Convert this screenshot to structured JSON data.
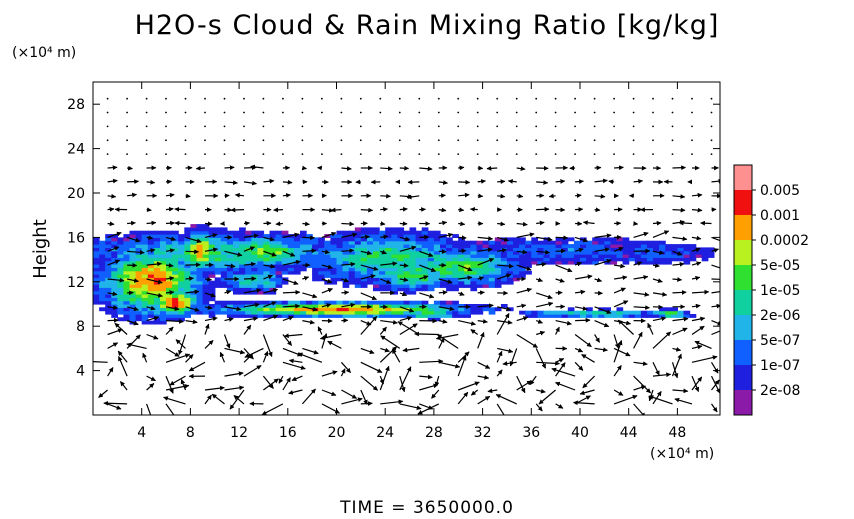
{
  "chart_data": {
    "type": "heatmap",
    "title": "H2O-s Cloud & Rain Mixing Ratio [kg/kg]",
    "ylabel": "Height",
    "y_unit": "(×10⁴ m)",
    "x_unit": "(×10⁴ m)",
    "xlim": [
      0,
      51.5
    ],
    "ylim": [
      0,
      30
    ],
    "x_ticks": [
      4,
      8,
      12,
      16,
      20,
      24,
      28,
      32,
      36,
      40,
      44,
      48
    ],
    "y_ticks": [
      4,
      8,
      12,
      16,
      20,
      24,
      28
    ],
    "colorbar": {
      "levels": [
        "2e-08",
        "1e-07",
        "5e-07",
        "2e-06",
        "1e-05",
        "5e-05",
        "0.0002",
        "0.001",
        "0.005"
      ],
      "colors": [
        "#8b1aa8",
        "#1f1fe0",
        "#1060ff",
        "#20b4e8",
        "#10d0a0",
        "#30e030",
        "#b8f020",
        "#ffa000",
        "#f01010",
        "#ff9090"
      ]
    },
    "footer": "TIME = 3650000.0"
  }
}
